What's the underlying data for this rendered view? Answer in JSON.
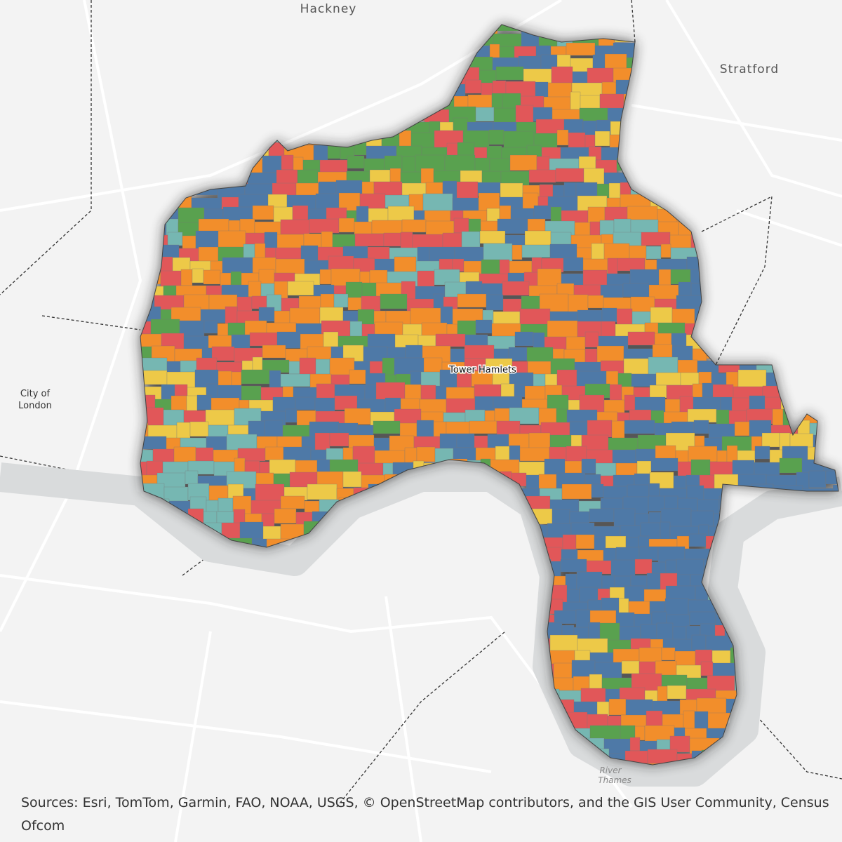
{
  "labels": {
    "hackney": "Hackney",
    "stratford": "Stratford",
    "city_of_london": [
      "City of",
      "London"
    ],
    "tower_hamlets": "Tower Hamlets",
    "river_thames": [
      "River",
      "Thames"
    ]
  },
  "attribution": [
    "Sources: Esri, TomTom, Garmin, FAO, NOAA, USGS, © OpenStreetMap contributors, and the GIS User Community, Census",
    "Ofcom"
  ]
}
